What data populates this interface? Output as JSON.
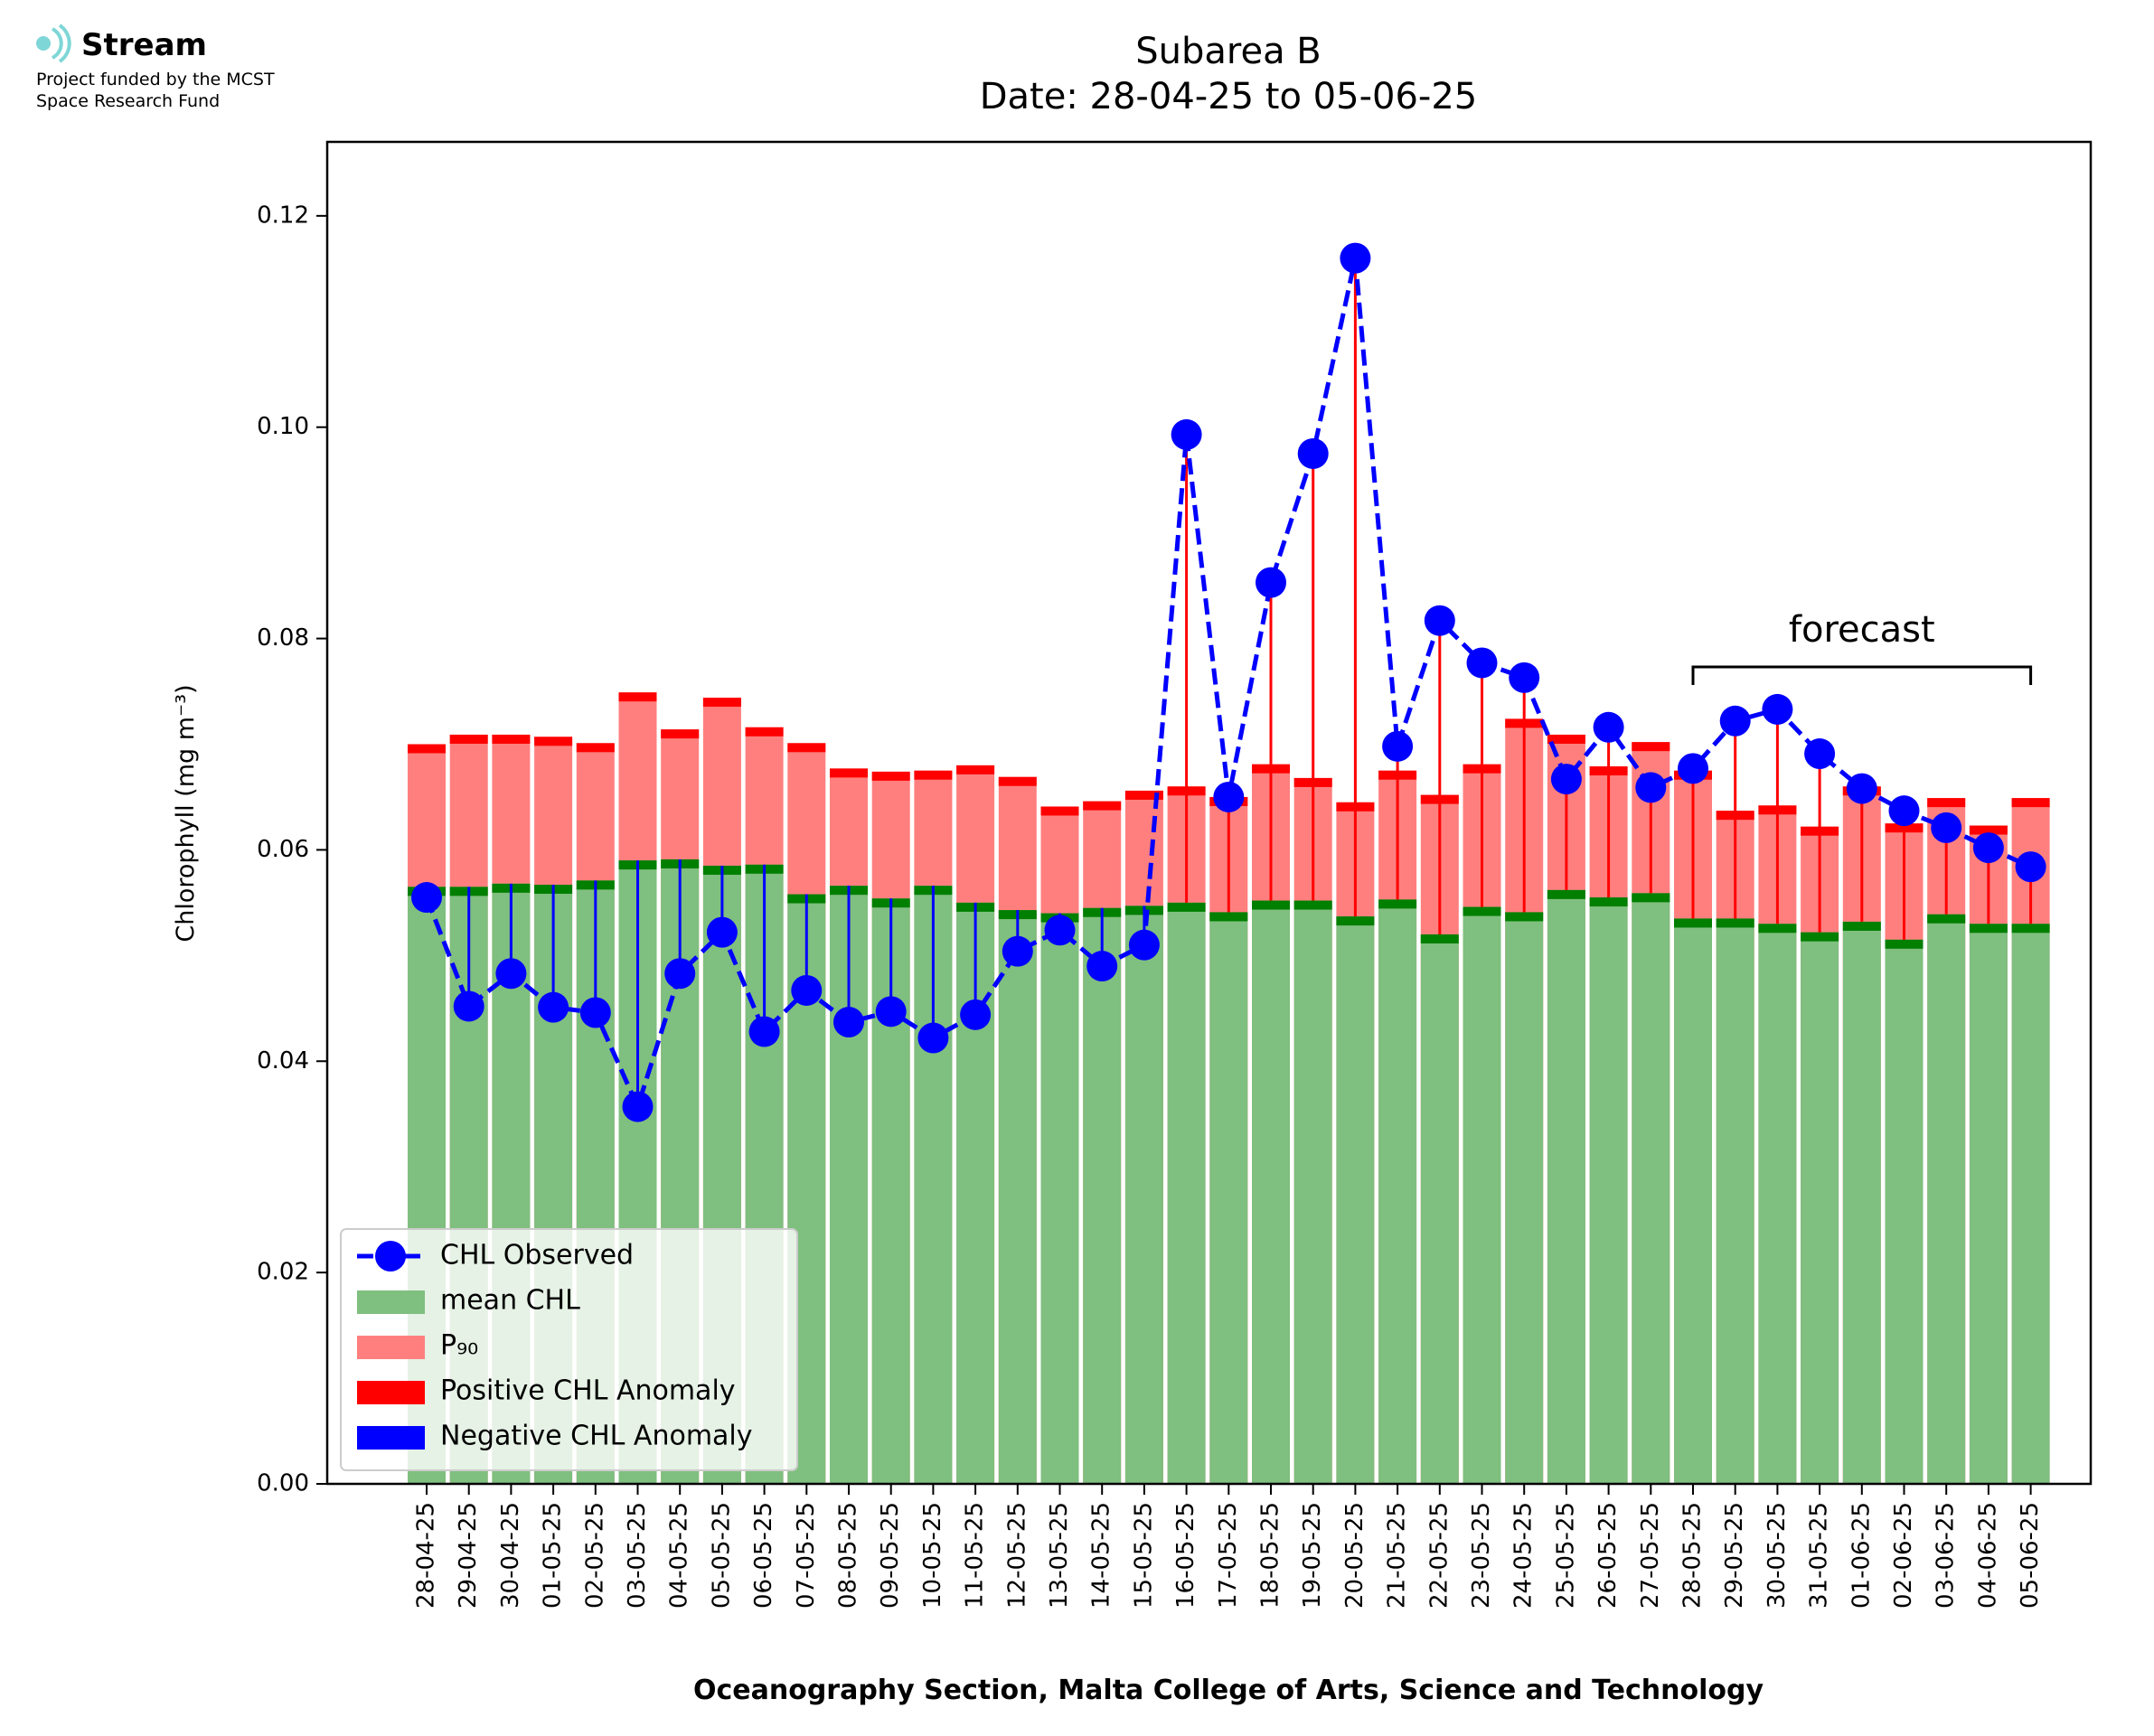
{
  "logo": {
    "name": "Stream",
    "subtitle_line1": "Project funded by the MCST",
    "subtitle_line2": "Space Research Fund"
  },
  "chart_data": {
    "type": "bar",
    "title": "Subarea B",
    "subtitle": "Date: 28-04-25 to 05-06-25",
    "xlabel": "Oceanography Section, Malta College of Arts, Science and Technology",
    "ylabel": "Chlorophyll (mg m⁻³)",
    "ylim": [
      0,
      0.127
    ],
    "yticks": [
      0.0,
      0.02,
      0.04,
      0.06,
      0.08,
      0.1,
      0.12
    ],
    "ytick_labels": [
      "0.00",
      "0.02",
      "0.04",
      "0.06",
      "0.08",
      "0.10",
      "0.12"
    ],
    "grid": false,
    "legend_position": "lower-left",
    "annotation": "forecast",
    "forecast_range": [
      "28-05-25",
      "05-06-25"
    ],
    "categories": [
      "28-04-25",
      "29-04-25",
      "30-04-25",
      "01-05-25",
      "02-05-25",
      "03-05-25",
      "04-05-25",
      "05-05-25",
      "06-05-25",
      "07-05-25",
      "08-05-25",
      "09-05-25",
      "10-05-25",
      "11-05-25",
      "12-05-25",
      "13-05-25",
      "14-05-25",
      "15-05-25",
      "16-05-25",
      "17-05-25",
      "18-05-25",
      "19-05-25",
      "20-05-25",
      "21-05-25",
      "22-05-25",
      "23-05-25",
      "24-05-25",
      "25-05-25",
      "26-05-25",
      "27-05-25",
      "28-05-25",
      "29-05-25",
      "30-05-25",
      "31-05-25",
      "01-06-25",
      "02-06-25",
      "03-06-25",
      "04-06-25",
      "05-06-25"
    ],
    "series": [
      {
        "name": "CHL Observed",
        "color": "#0000ff",
        "values": [
          0.0555,
          0.0452,
          0.0483,
          0.0451,
          0.0446,
          0.0357,
          0.0483,
          0.0522,
          0.0428,
          0.0467,
          0.0437,
          0.0447,
          0.0422,
          0.0444,
          0.0504,
          0.0524,
          0.049,
          0.051,
          0.0993,
          0.065,
          0.0853,
          0.0975,
          0.116,
          0.0698,
          0.0817,
          0.0777,
          0.0763,
          0.0667,
          0.0716,
          0.0659,
          0.0677,
          0.0722,
          0.0733,
          0.0691,
          0.0658,
          0.0637,
          0.0621,
          0.0602,
          0.0584
        ]
      },
      {
        "name": "mean CHL",
        "color": "#7fbf7f",
        "values": [
          0.0565,
          0.0565,
          0.0568,
          0.0567,
          0.0571,
          0.059,
          0.0591,
          0.0585,
          0.0586,
          0.0558,
          0.0566,
          0.0554,
          0.0566,
          0.055,
          0.0543,
          0.054,
          0.0545,
          0.0547,
          0.055,
          0.0541,
          0.0552,
          0.0552,
          0.0537,
          0.0553,
          0.052,
          0.0546,
          0.0541,
          0.0562,
          0.0555,
          0.0559,
          0.0535,
          0.0535,
          0.053,
          0.0522,
          0.0532,
          0.0515,
          0.0539,
          0.053,
          0.053
        ]
      },
      {
        "name": "P₉₀",
        "color": "#ff7f7f",
        "values": [
          0.07,
          0.0709,
          0.0709,
          0.0707,
          0.0701,
          0.0749,
          0.0714,
          0.0744,
          0.0716,
          0.0701,
          0.0677,
          0.0674,
          0.0675,
          0.068,
          0.0669,
          0.0641,
          0.0646,
          0.0656,
          0.066,
          0.065,
          0.0681,
          0.0668,
          0.0645,
          0.0675,
          0.0652,
          0.0681,
          0.0724,
          0.0709,
          0.0679,
          0.0702,
          0.0675,
          0.0637,
          0.0642,
          0.0622,
          0.066,
          0.0625,
          0.0649,
          0.0623,
          0.0649
        ]
      },
      {
        "name": "Positive CHL Anomaly",
        "color": "#ff0000"
      },
      {
        "name": "Negative CHL Anomaly",
        "color": "#0000ff"
      }
    ],
    "colors": {
      "mean_cap": "#007f00",
      "p90_cap": "#ff0000",
      "axis": "#000000"
    }
  }
}
